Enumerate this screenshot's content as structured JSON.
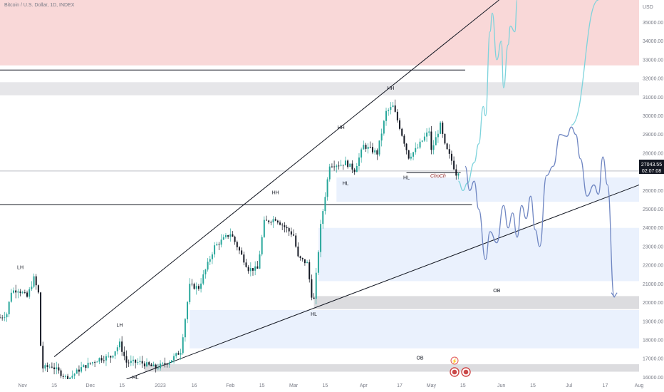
{
  "header": {
    "title": "Bitcoin / U.S. Dollar, 1D, INDEX"
  },
  "price_axis": {
    "currency": "USD",
    "current_price": "27043.55",
    "countdown": "02:07:08"
  },
  "chart_data": {
    "type": "candlestick",
    "title": "Bitcoin / U.S. Dollar, 1D, INDEX",
    "xlabel": "",
    "ylabel": "",
    "ylim": [
      15900,
      36200
    ],
    "x_range": [
      "2022-10-22",
      "2023-08-01"
    ],
    "y_ticks": [
      16000,
      17000,
      18000,
      19000,
      20000,
      21000,
      22000,
      23000,
      24000,
      25000,
      26000,
      27000,
      28000,
      29000,
      30000,
      31000,
      32000,
      33000,
      34000,
      35000
    ],
    "y_tick_labels": [
      "16000.00",
      "17000.00",
      "18000.00",
      "19000.00",
      "20000.00",
      "21000.00",
      "22000.00",
      "23000.00",
      "24000.00",
      "25000.00",
      "26000.00",
      "27000.00",
      "28000.00",
      "29000.00",
      "30000.00",
      "31000.00",
      "32000.00",
      "33000.00",
      "34000.00",
      "35000.00"
    ],
    "x_ticks": [
      {
        "date": "2022-11-01",
        "label": "Nov"
      },
      {
        "date": "2022-11-15",
        "label": "15"
      },
      {
        "date": "2022-12-01",
        "label": "Dec"
      },
      {
        "date": "2022-12-15",
        "label": "15"
      },
      {
        "date": "2023-01-01",
        "label": "2023"
      },
      {
        "date": "2023-01-16",
        "label": "16"
      },
      {
        "date": "2023-02-01",
        "label": "Feb"
      },
      {
        "date": "2023-02-15",
        "label": "15"
      },
      {
        "date": "2023-03-01",
        "label": "Mar"
      },
      {
        "date": "2023-03-15",
        "label": "15"
      },
      {
        "date": "2023-04-01",
        "label": "Apr"
      },
      {
        "date": "2023-04-17",
        "label": "17"
      },
      {
        "date": "2023-05-01",
        "label": "May"
      },
      {
        "date": "2023-05-15",
        "label": "15"
      },
      {
        "date": "2023-06-01",
        "label": "Jun"
      },
      {
        "date": "2023-06-15",
        "label": "15"
      },
      {
        "date": "2023-07-01",
        "label": "Jul"
      },
      {
        "date": "2023-07-17",
        "label": "17"
      },
      {
        "date": "2023-08-01",
        "label": "Aug"
      }
    ],
    "price_waypoints": [
      [
        "2022-10-22",
        19200
      ],
      [
        "2022-10-25",
        19400
      ],
      [
        "2022-10-27",
        20600
      ],
      [
        "2022-10-30",
        20700
      ],
      [
        "2022-11-03",
        20300
      ],
      [
        "2022-11-06",
        21300
      ],
      [
        "2022-11-08",
        20500
      ],
      [
        "2022-11-09",
        17700
      ],
      [
        "2022-11-10",
        16500
      ],
      [
        "2022-11-14",
        16600
      ],
      [
        "2022-11-21",
        15900
      ],
      [
        "2022-11-27",
        16500
      ],
      [
        "2022-12-05",
        17000
      ],
      [
        "2022-12-10",
        17100
      ],
      [
        "2022-12-14",
        17800
      ],
      [
        "2022-12-17",
        16800
      ],
      [
        "2022-12-23",
        16800
      ],
      [
        "2022-12-30",
        16500
      ],
      [
        "2023-01-05",
        16850
      ],
      [
        "2023-01-10",
        17400
      ],
      [
        "2023-01-14",
        20900
      ],
      [
        "2023-01-18",
        20800
      ],
      [
        "2023-01-25",
        23000
      ],
      [
        "2023-02-01",
        23700
      ],
      [
        "2023-02-02",
        23500
      ],
      [
        "2023-02-09",
        21800
      ],
      [
        "2023-02-13",
        21800
      ],
      [
        "2023-02-16",
        24300
      ],
      [
        "2023-02-21",
        24500
      ],
      [
        "2023-03-01",
        23600
      ],
      [
        "2023-03-03",
        22400
      ],
      [
        "2023-03-07",
        22100
      ],
      [
        "2023-03-09",
        20400
      ],
      [
        "2023-03-10",
        20150
      ],
      [
        "2023-03-13",
        24100
      ],
      [
        "2023-03-17",
        27400
      ],
      [
        "2023-03-22",
        27400
      ],
      [
        "2023-03-24",
        27500
      ],
      [
        "2023-03-28",
        27100
      ],
      [
        "2023-04-01",
        28400
      ],
      [
        "2023-04-07",
        28000
      ],
      [
        "2023-04-11",
        30200
      ],
      [
        "2023-04-14",
        30500
      ],
      [
        "2023-04-17",
        29400
      ],
      [
        "2023-04-21",
        27800
      ],
      [
        "2023-04-25",
        28300
      ],
      [
        "2023-04-26",
        28500
      ],
      [
        "2023-04-30",
        29200
      ],
      [
        "2023-05-01",
        28100
      ],
      [
        "2023-05-05",
        29500
      ],
      [
        "2023-05-07",
        28400
      ],
      [
        "2023-05-10",
        27600
      ],
      [
        "2023-05-12",
        26900
      ],
      [
        "2023-05-13",
        27043.55
      ]
    ],
    "levels": [
      {
        "type": "horizontal_line",
        "price": 32450,
        "from": "2022-10-22",
        "to": "2023-05-16"
      },
      {
        "type": "horizontal_line",
        "price": 25250,
        "from": "2022-10-22",
        "to": "2023-05-19"
      },
      {
        "type": "current_price_line",
        "price": 27043.55
      },
      {
        "type": "choch_line",
        "price": 26950,
        "from": "2023-04-20",
        "to": "2023-05-14"
      }
    ],
    "zones": [
      {
        "kind": "supply",
        "color": "#f9d8d8",
        "from": "2022-10-22",
        "to": "2023-08-01",
        "top": 36200,
        "bottom": 32700
      },
      {
        "kind": "resistance",
        "color": "#e6e6e9",
        "from": "2022-10-22",
        "to": "2023-08-01",
        "top": 31800,
        "bottom": 31100
      },
      {
        "kind": "demand",
        "color": "#eaf1fd",
        "from": "2023-03-20",
        "to": "2023-08-01",
        "top": 26700,
        "bottom": 25400
      },
      {
        "kind": "demand",
        "color": "#eaf1fd",
        "from": "2023-03-12",
        "to": "2023-08-01",
        "top": 24000,
        "bottom": 21150
      },
      {
        "kind": "order_block",
        "color": "#dcdcdf",
        "from": "2023-03-10",
        "to": "2023-08-01",
        "top": 20350,
        "bottom": 19650
      },
      {
        "kind": "demand",
        "color": "#eaf1fd",
        "from": "2023-01-14",
        "to": "2023-08-01",
        "top": 19600,
        "bottom": 17550
      },
      {
        "kind": "order_block",
        "color": "#dcdcdf",
        "from": "2022-12-25",
        "to": "2023-08-01",
        "top": 16700,
        "bottom": 16300
      }
    ],
    "trendlines": [
      {
        "from": [
          "2022-11-15",
          17100
        ],
        "to": [
          "2023-05-31",
          36200
        ]
      },
      {
        "from": [
          "2022-12-17",
          15900
        ],
        "to": [
          "2023-08-01",
          26300
        ]
      }
    ],
    "projections": [
      {
        "name": "",
        "color": "#7dd3dc",
        "points": [
          [
            "2023-05-13",
            26500
          ],
          [
            "2023-05-15",
            26000
          ],
          [
            "2023-05-17",
            26400
          ],
          [
            "2023-05-20",
            27500
          ],
          [
            "2023-05-22",
            28500
          ],
          [
            "2023-05-24",
            30500
          ],
          [
            "2023-05-25",
            30000
          ],
          [
            "2023-05-27",
            34500
          ],
          [
            "2023-05-28",
            35500
          ],
          [
            "2023-05-30",
            33000
          ],
          [
            "2023-06-01",
            34000
          ],
          [
            "2023-06-02",
            31500
          ],
          [
            "2023-06-04",
            33800
          ],
          [
            "2023-06-05",
            34800
          ],
          [
            "2023-06-07",
            34500
          ],
          [
            "2023-06-08",
            36200
          ]
        ]
      },
      {
        "name": "",
        "color": "#6f86c2",
        "points": [
          [
            "2023-05-16",
            27300
          ],
          [
            "2023-05-18",
            26000
          ],
          [
            "2023-05-20",
            26500
          ],
          [
            "2023-05-22",
            25000
          ],
          [
            "2023-05-25",
            22300
          ],
          [
            "2023-05-27",
            23800
          ],
          [
            "2023-05-30",
            23200
          ],
          [
            "2023-06-02",
            25200
          ],
          [
            "2023-06-04",
            24000
          ],
          [
            "2023-06-06",
            24800
          ],
          [
            "2023-06-08",
            23500
          ],
          [
            "2023-06-10",
            25200
          ],
          [
            "2023-06-12",
            24500
          ],
          [
            "2023-06-14",
            25700
          ],
          [
            "2023-06-16",
            23900
          ],
          [
            "2023-06-18",
            23000
          ],
          [
            "2023-06-21",
            26800
          ],
          [
            "2023-06-24",
            27300
          ],
          [
            "2023-06-27",
            29000
          ],
          [
            "2023-06-30",
            28900
          ],
          [
            "2023-07-02",
            29400
          ],
          [
            "2023-07-04",
            29000
          ],
          [
            "2023-07-06",
            27700
          ],
          [
            "2023-07-09",
            25700
          ],
          [
            "2023-07-12",
            26300
          ],
          [
            "2023-07-14",
            25800
          ],
          [
            "2023-07-16",
            27800
          ],
          [
            "2023-07-18",
            26300
          ],
          [
            "2023-07-21",
            20300
          ]
        ]
      },
      {
        "name": "",
        "color": "#7dd3dc",
        "points": [
          [
            "2023-07-02",
            29500
          ],
          [
            "2023-07-14",
            36200
          ]
        ]
      }
    ],
    "annotations": [
      {
        "text": "LH",
        "date": "2022-10-31",
        "price": 21800
      },
      {
        "text": "LH",
        "date": "2022-12-14",
        "price": 18700
      },
      {
        "text": "HL",
        "date": "2022-12-21",
        "price": 15900
      },
      {
        "text": "HH",
        "date": "2023-02-21",
        "price": 25800
      },
      {
        "text": "HH",
        "date": "2023-03-22",
        "price": 29300
      },
      {
        "text": "HH",
        "date": "2023-04-13",
        "price": 31400
      },
      {
        "text": "HL",
        "date": "2023-03-10",
        "price": 19300
      },
      {
        "text": "HL",
        "date": "2023-03-24",
        "price": 26300
      },
      {
        "text": "HL",
        "date": "2023-04-20",
        "price": 26600
      },
      {
        "text": "ChoCh",
        "date": "2023-05-04",
        "price": 26700,
        "color": "#8b1a1a",
        "italic": true
      },
      {
        "text": "OB",
        "date": "2023-05-30",
        "price": 20550
      },
      {
        "text": "OB",
        "date": "2023-04-26",
        "price": 16950
      }
    ]
  }
}
